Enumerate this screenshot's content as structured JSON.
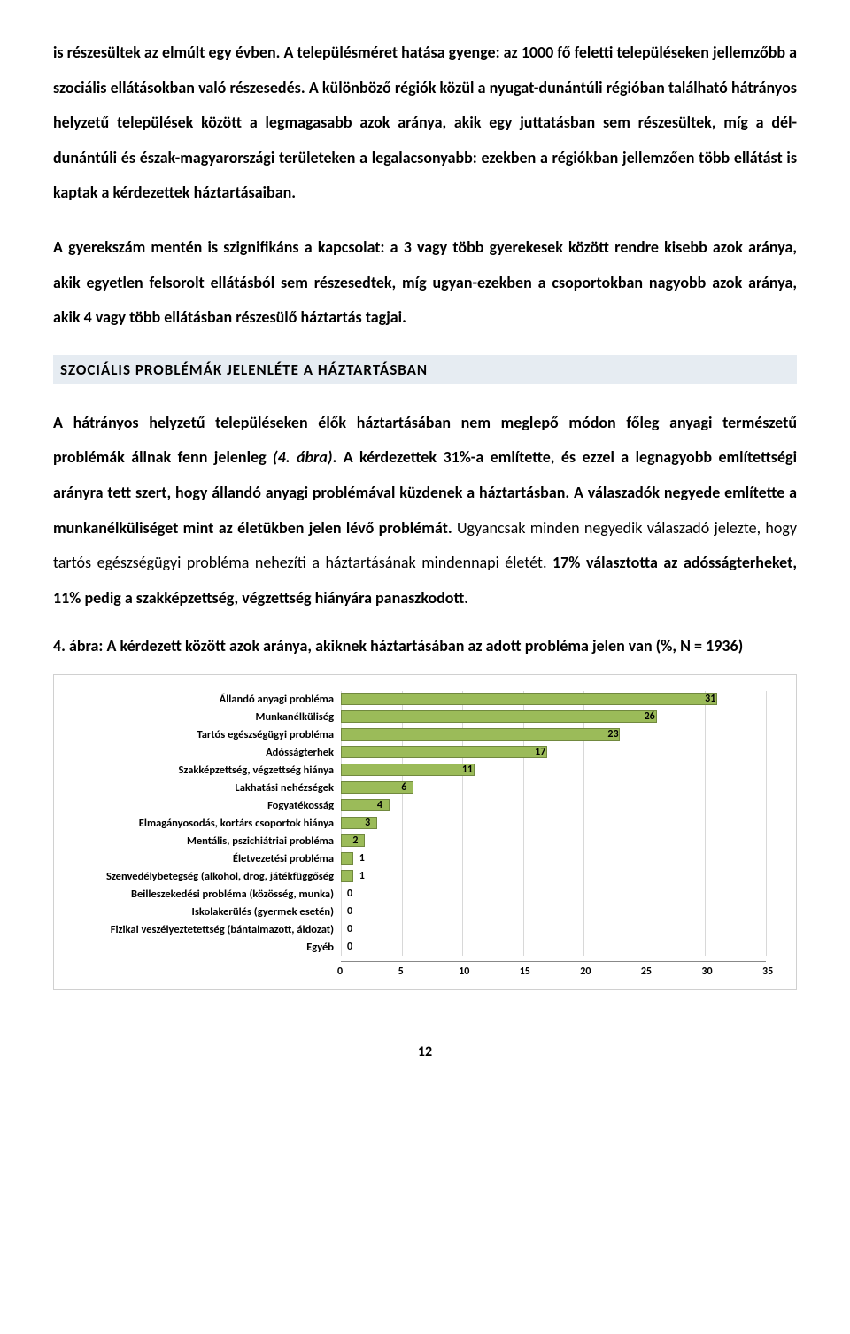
{
  "paragraphs": {
    "p1": "is részesültek az elmúlt egy évben. A településméret hatása gyenge: az 1000 fő feletti településeken jellemzőbb a szociális ellátásokban való részesedés. A különböző régiók közül a nyugat-dunántúli régióban található hátrányos helyzetű települések között a legmagasabb azok aránya, akik egy juttatásban sem részesültek, míg a dél-dunántúli és észak-magyarországi területeken a legalacsonyabb: ezekben a régiókban jellemzően több ellátást is kaptak a kérdezettek háztartásaiban.",
    "p2": "A gyerekszám mentén is szignifikáns a kapcsolat: a 3 vagy több gyerekesek között rendre kisebb azok aránya, akik egyetlen felsorolt ellátásból sem részesedtek, míg ugyan-ezekben a csoportokban nagyobb azok aránya, akik 4 vagy több ellátásban részesülő háztartás tagjai."
  },
  "section_heading": "SZOCIÁLIS PROBLÉMÁK JELENLÉTE A HÁZTARTÁSBAN",
  "mixed": {
    "s1_bold": "A hátrányos helyzetű településeken élők háztartásában nem meglepő módon főleg anyagi természetű problémák állnak fenn jelenleg ",
    "s1_italic": "(4. ábra)",
    "s1_bold2": ". A kérdezettek 31%-a említette, és ezzel a legnagyobb említettségi arányra tett szert, hogy állandó anyagi problémával küzdenek a háztartásban. A válaszadók negyede említette a munkanélküliséget mint az életükben jelen lévő problémát.",
    "s2_normal": " Ugyancsak minden negyedik válaszadó jelezte, hogy tartós egészségügyi probléma nehezíti a háztartásának mindennapi életét. ",
    "s2_bold": "17% választotta az adósságterheket, 11% pedig a szakképzettség, végzettség hiányára panaszkodott."
  },
  "chart": {
    "title": "4. ábra: A kérdezett között azok aránya, akiknek háztartásában az adott probléma jelen van (%, N = 1936)",
    "type": "bar",
    "bar_color": "#9bbb59",
    "bar_border": "#71893f",
    "grid_color": "#d8d8d8",
    "background_color": "#ffffff",
    "xlim": [
      0,
      35
    ],
    "xtick_step": 5,
    "xticks": [
      0,
      5,
      10,
      15,
      20,
      25,
      30,
      35
    ],
    "label_fontsize": 12.5,
    "value_fontsize": 12,
    "items": [
      {
        "label": "Állandó anyagi probléma",
        "value": 31
      },
      {
        "label": "Munkanélküliség",
        "value": 26
      },
      {
        "label": "Tartós egészségügyi probléma",
        "value": 23
      },
      {
        "label": "Adósságterhek",
        "value": 17
      },
      {
        "label": "Szakképzettség, végzettség hiánya",
        "value": 11
      },
      {
        "label": "Lakhatási nehézségek",
        "value": 6
      },
      {
        "label": "Fogyatékosság",
        "value": 4
      },
      {
        "label": "Elmagányosodás, kortárs csoportok hiánya",
        "value": 3
      },
      {
        "label": "Mentális, pszichiátriai probléma",
        "value": 2
      },
      {
        "label": "Életvezetési probléma",
        "value": 1
      },
      {
        "label": "Szenvedélybetegség (alkohol, drog, játékfüggőség",
        "value": 1
      },
      {
        "label": "Beilleszekedési probléma (közösség, munka)",
        "value": 0
      },
      {
        "label": "Iskolakerülés (gyermek esetén)",
        "value": 0
      },
      {
        "label": "Fizikai veszélyeztetettség (bántalmazott, áldozat)",
        "value": 0
      },
      {
        "label": "Egyéb",
        "value": 0
      }
    ]
  },
  "page_number": "12"
}
